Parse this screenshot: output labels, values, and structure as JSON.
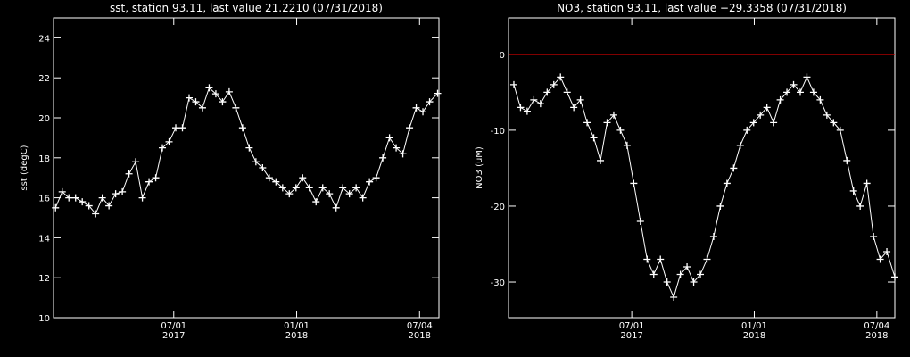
{
  "chart_data": [
    {
      "type": "line",
      "marker": "+",
      "color": "#ffffff",
      "title": "sst, station 93.11, last value 21.2210 (07/31/2018)",
      "y_label": "sst (degC)",
      "xlim": [
        "2017-01-02",
        "2018-08-02"
      ],
      "xticks": [
        {
          "value": "2017-07-01",
          "label": "07/01\n2017"
        },
        {
          "value": "2018-01-01",
          "label": "01/01\n2018"
        },
        {
          "value": "2018-07-04",
          "label": "07/04\n2018"
        }
      ],
      "ylim": [
        10,
        25
      ],
      "yticks": [
        10,
        12,
        14,
        16,
        18,
        20,
        22,
        24
      ],
      "x": [
        "2017-01-05",
        "2017-01-15",
        "2017-01-25",
        "2017-02-04",
        "2017-02-14",
        "2017-02-24",
        "2017-03-06",
        "2017-03-16",
        "2017-03-26",
        "2017-04-05",
        "2017-04-15",
        "2017-04-25",
        "2017-05-05",
        "2017-05-15",
        "2017-05-25",
        "2017-06-04",
        "2017-06-14",
        "2017-06-24",
        "2017-07-04",
        "2017-07-14",
        "2017-07-24",
        "2017-08-03",
        "2017-08-13",
        "2017-08-23",
        "2017-09-02",
        "2017-09-12",
        "2017-09-22",
        "2017-10-02",
        "2017-10-12",
        "2017-10-22",
        "2017-11-01",
        "2017-11-11",
        "2017-11-21",
        "2017-12-01",
        "2017-12-11",
        "2017-12-21",
        "2017-12-31",
        "2018-01-10",
        "2018-01-20",
        "2018-01-30",
        "2018-02-09",
        "2018-02-19",
        "2018-03-01",
        "2018-03-11",
        "2018-03-21",
        "2018-03-31",
        "2018-04-10",
        "2018-04-20",
        "2018-04-30",
        "2018-05-10",
        "2018-05-20",
        "2018-05-30",
        "2018-06-09",
        "2018-06-19",
        "2018-06-29",
        "2018-07-09",
        "2018-07-19",
        "2018-07-31"
      ],
      "values": [
        15.5,
        16.3,
        16.0,
        16.0,
        15.8,
        15.6,
        15.2,
        16.0,
        15.6,
        16.2,
        16.3,
        17.2,
        17.8,
        16.0,
        16.8,
        17.0,
        18.5,
        18.8,
        19.5,
        19.5,
        21.0,
        20.8,
        20.5,
        21.5,
        21.2,
        20.8,
        21.3,
        20.5,
        19.5,
        18.5,
        17.8,
        17.5,
        17.0,
        16.8,
        16.5,
        16.2,
        16.5,
        17.0,
        16.5,
        15.8,
        16.5,
        16.2,
        15.5,
        16.5,
        16.2,
        16.5,
        16.0,
        16.8,
        17.0,
        18.0,
        19.0,
        18.5,
        18.2,
        19.5,
        20.5,
        20.3,
        20.8,
        21.221
      ]
    },
    {
      "type": "line",
      "marker": "+",
      "color": "#ffffff",
      "title": "NO3, station 93.11, last value −29.3358 (07/31/2018)",
      "y_label": "NO3 (uM)",
      "xlim": [
        "2016-12-28",
        "2018-07-31"
      ],
      "xticks": [
        {
          "value": "2017-07-01",
          "label": "07/01\n2017"
        },
        {
          "value": "2018-01-01",
          "label": "01/01\n2018"
        },
        {
          "value": "2018-07-04",
          "label": "07/04\n2018"
        }
      ],
      "ylim": [
        -34.7,
        4.8
      ],
      "yticks": [
        -30,
        -20,
        -10,
        0
      ],
      "hline": 0,
      "hline_color": "#cc0000",
      "x": [
        "2017-01-05",
        "2017-01-15",
        "2017-01-25",
        "2017-02-04",
        "2017-02-14",
        "2017-02-24",
        "2017-03-06",
        "2017-03-16",
        "2017-03-26",
        "2017-04-05",
        "2017-04-15",
        "2017-04-25",
        "2017-05-05",
        "2017-05-15",
        "2017-05-25",
        "2017-06-04",
        "2017-06-14",
        "2017-06-24",
        "2017-07-04",
        "2017-07-14",
        "2017-07-24",
        "2017-08-03",
        "2017-08-13",
        "2017-08-23",
        "2017-09-02",
        "2017-09-12",
        "2017-09-22",
        "2017-10-02",
        "2017-10-12",
        "2017-10-22",
        "2017-11-01",
        "2017-11-11",
        "2017-11-21",
        "2017-12-01",
        "2017-12-11",
        "2017-12-21",
        "2017-12-31",
        "2018-01-10",
        "2018-01-20",
        "2018-01-30",
        "2018-02-09",
        "2018-02-19",
        "2018-03-01",
        "2018-03-11",
        "2018-03-21",
        "2018-03-31",
        "2018-04-10",
        "2018-04-20",
        "2018-04-30",
        "2018-05-10",
        "2018-05-20",
        "2018-05-30",
        "2018-06-09",
        "2018-06-19",
        "2018-06-29",
        "2018-07-09",
        "2018-07-19",
        "2018-07-31"
      ],
      "values": [
        -4,
        -7,
        -7.5,
        -6,
        -6.5,
        -5,
        -4,
        -3,
        -5,
        -7,
        -6,
        -9,
        -11,
        -14,
        -9,
        -8,
        -10,
        -12,
        -17,
        -22,
        -27,
        -29,
        -27,
        -30,
        -32,
        -29,
        -28,
        -30,
        -29,
        -27,
        -24,
        -20,
        -17,
        -15,
        -12,
        -10,
        -9,
        -8,
        -7,
        -9,
        -6,
        -5,
        -4,
        -5,
        -3,
        -5,
        -6,
        -8,
        -9,
        -10,
        -14,
        -18,
        -20,
        -17,
        -24,
        -27,
        -26,
        -29.3358
      ]
    }
  ]
}
